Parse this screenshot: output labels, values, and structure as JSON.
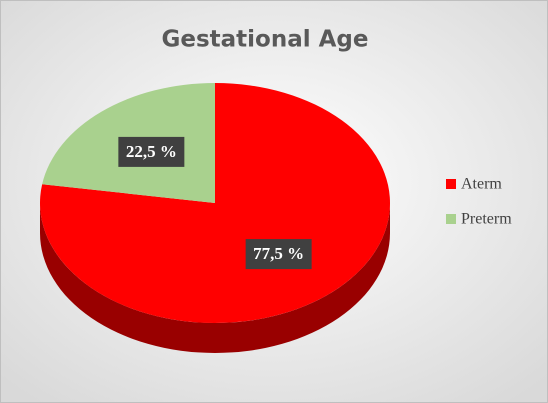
{
  "chart_data": {
    "type": "pie",
    "title": "Gestational Age",
    "categories": [
      "Aterm",
      "Preterm"
    ],
    "values": [
      77.5,
      22.5
    ],
    "value_labels": [
      "77,5 %",
      "22,5 %"
    ],
    "colors": [
      "#ff0000",
      "#a9d18e"
    ],
    "legend": "right"
  }
}
